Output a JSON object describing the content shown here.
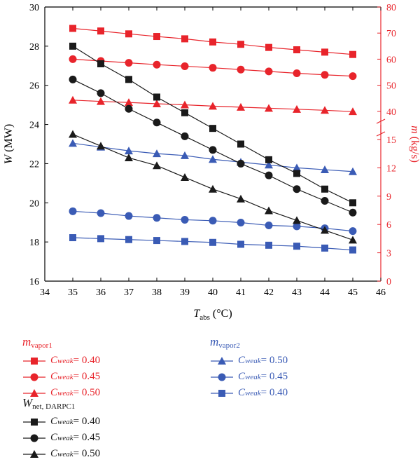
{
  "chart_data": {
    "type": "line",
    "x_label_var": "T",
    "x_label_sub": "abs",
    "x_label_unit": " (°C)",
    "y_left_label_var": "W",
    "y_left_label_unit": " (MW)",
    "y_right_label_var": "m",
    "y_right_label_unit": " (kg/s)",
    "x_ticks": [
      34,
      35,
      36,
      37,
      38,
      39,
      40,
      41,
      42,
      43,
      44,
      45,
      46
    ],
    "xlim": [
      34,
      46
    ],
    "left_ylim": [
      16,
      30
    ],
    "left_ticks": [
      16,
      18,
      20,
      22,
      24,
      26,
      28,
      30
    ],
    "right_lower_ticks": [
      0,
      3,
      6,
      9,
      12,
      15
    ],
    "right_upper_ticks": [
      40,
      50,
      60,
      70,
      80
    ],
    "right_lower_range": [
      0,
      17
    ],
    "right_upper_range": [
      30,
      80
    ],
    "x": [
      35,
      36,
      37,
      38,
      39,
      40,
      41,
      42,
      43,
      44,
      45
    ],
    "series": [
      {
        "group": "mvapor1",
        "axis": "right",
        "marker": "square",
        "color": "#e8242b",
        "label": "Cweak = 0.40",
        "values": [
          71.8,
          70.8,
          69.7,
          68.7,
          67.8,
          66.6,
          65.7,
          64.5,
          63.6,
          62.7,
          61.8
        ]
      },
      {
        "group": "mvapor1",
        "axis": "right",
        "marker": "circle",
        "color": "#e8242b",
        "label": "Cweak = 0.45",
        "values": [
          60.0,
          59.3,
          58.6,
          57.9,
          57.3,
          56.7,
          56.0,
          55.3,
          54.6,
          54.0,
          53.5
        ]
      },
      {
        "group": "mvapor1",
        "axis": "right",
        "marker": "triangle",
        "color": "#e8242b",
        "label": "Cweak = 0.50",
        "values": [
          44.3,
          43.8,
          43.4,
          42.9,
          42.5,
          42.0,
          41.6,
          41.2,
          40.8,
          40.4,
          39.9
        ]
      },
      {
        "group": "mvapor2",
        "axis": "right",
        "marker": "triangle",
        "color": "#3a5bb5",
        "label": "Cweak = 0.50",
        "values": [
          14.6,
          14.2,
          13.8,
          13.5,
          13.3,
          12.9,
          12.6,
          12.3,
          12.0,
          11.8,
          11.6
        ]
      },
      {
        "group": "mvapor2",
        "axis": "right",
        "marker": "circle",
        "color": "#3a5bb5",
        "label": "Cweak = 0.45",
        "values": [
          7.4,
          7.2,
          6.9,
          6.7,
          6.5,
          6.4,
          6.2,
          5.9,
          5.8,
          5.6,
          5.3
        ]
      },
      {
        "group": "mvapor2",
        "axis": "right",
        "marker": "square",
        "color": "#3a5bb5",
        "label": "Cweak = 0.40",
        "values": [
          4.6,
          4.5,
          4.4,
          4.3,
          4.2,
          4.1,
          3.9,
          3.8,
          3.7,
          3.5,
          3.3
        ]
      },
      {
        "group": "wnet",
        "axis": "left",
        "marker": "square",
        "color": "#1a1a1a",
        "label": "Cweak = 0.40",
        "values": [
          28.0,
          27.1,
          26.3,
          25.4,
          24.6,
          23.8,
          23.0,
          22.2,
          21.5,
          20.7,
          20.0
        ]
      },
      {
        "group": "wnet",
        "axis": "left",
        "marker": "circle",
        "color": "#1a1a1a",
        "label": "Cweak = 0.45",
        "values": [
          26.3,
          25.6,
          24.8,
          24.1,
          23.4,
          22.7,
          22.0,
          21.4,
          20.7,
          20.1,
          19.5
        ]
      },
      {
        "group": "wnet",
        "axis": "left",
        "marker": "triangle",
        "color": "#1a1a1a",
        "label": "Cweak = 0.50",
        "values": [
          23.5,
          22.9,
          22.3,
          21.9,
          21.3,
          20.7,
          20.2,
          19.6,
          19.1,
          18.6,
          18.1
        ]
      }
    ]
  },
  "legend": {
    "mvapor1": {
      "var": "m",
      "sub": "vapor1",
      "color": "#e8242b"
    },
    "mvapor2": {
      "var": "m",
      "sub": "vapor2",
      "color": "#3a5bb5"
    },
    "wnet": {
      "var": "W",
      "sub": "net, DARPC1",
      "color": "#1a1a1a"
    },
    "entry_var": "C",
    "entry_sub": "weak",
    "entry_items": [
      {
        "group": "mvapor1",
        "marker": "square",
        "value": " = 0.40"
      },
      {
        "group": "mvapor1",
        "marker": "circle",
        "value": " = 0.45"
      },
      {
        "group": "mvapor1",
        "marker": "triangle",
        "value": " = 0.50"
      },
      {
        "group": "mvapor2",
        "marker": "triangle",
        "value": " = 0.50"
      },
      {
        "group": "mvapor2",
        "marker": "circle",
        "value": " = 0.45"
      },
      {
        "group": "mvapor2",
        "marker": "square",
        "value": " = 0.40"
      },
      {
        "group": "wnet",
        "marker": "square",
        "value": " = 0.40"
      },
      {
        "group": "wnet",
        "marker": "circle",
        "value": " = 0.45"
      },
      {
        "group": "wnet",
        "marker": "triangle",
        "value": " = 0.50"
      }
    ]
  }
}
